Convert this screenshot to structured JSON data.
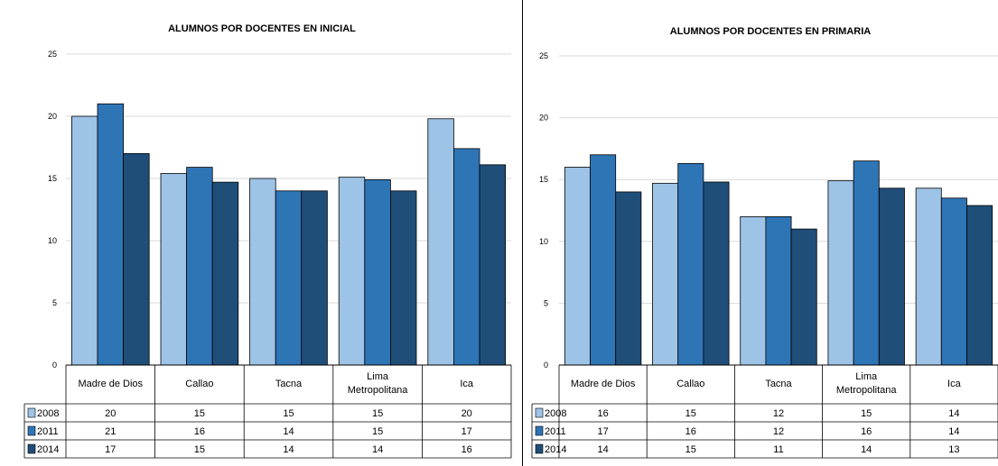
{
  "colors": {
    "2008": "#9dc3e6",
    "2011": "#2e75b6",
    "2014": "#1f4e79"
  },
  "chart_data": [
    {
      "type": "bar",
      "title": "ALUMNOS POR DOCENTES EN INICIAL",
      "categories": [
        "Madre de Dios",
        "Callao",
        "Tacna",
        "Lima Metropolitana",
        "Ica"
      ],
      "series": [
        {
          "name": "2008",
          "values": [
            20,
            15.4,
            15,
            15.1,
            19.8
          ],
          "labels": [
            "20",
            "15",
            "15",
            "15",
            "20"
          ]
        },
        {
          "name": "2011",
          "values": [
            21,
            15.9,
            14,
            14.9,
            17.4
          ],
          "labels": [
            "21",
            "16",
            "14",
            "15",
            "17"
          ]
        },
        {
          "name": "2014",
          "values": [
            17,
            14.7,
            14,
            14,
            16.1
          ],
          "labels": [
            "17",
            "15",
            "14",
            "14",
            "16"
          ]
        }
      ],
      "ylim": [
        0,
        25
      ],
      "yticks": [
        0,
        5,
        10,
        15,
        20,
        25
      ],
      "grid": true,
      "legend": "data-table"
    },
    {
      "type": "bar",
      "title": "ALUMNOS POR DOCENTES EN PRIMARIA",
      "categories": [
        "Madre de Dios",
        "Callao",
        "Tacna",
        "Lima Metropolitana",
        "Ica"
      ],
      "series": [
        {
          "name": "2008",
          "values": [
            16,
            14.7,
            12,
            14.9,
            14.3
          ],
          "labels": [
            "16",
            "15",
            "12",
            "15",
            "14"
          ]
        },
        {
          "name": "2011",
          "values": [
            17,
            16.3,
            12,
            16.5,
            13.5
          ],
          "labels": [
            "17",
            "16",
            "12",
            "16",
            "14"
          ]
        },
        {
          "name": "2014",
          "values": [
            14,
            14.8,
            11,
            14.3,
            12.9
          ],
          "labels": [
            "14",
            "15",
            "11",
            "14",
            "13"
          ]
        }
      ],
      "ylim": [
        0,
        25
      ],
      "yticks": [
        0,
        5,
        10,
        15,
        20,
        25
      ],
      "grid": true,
      "legend": "data-table"
    }
  ]
}
